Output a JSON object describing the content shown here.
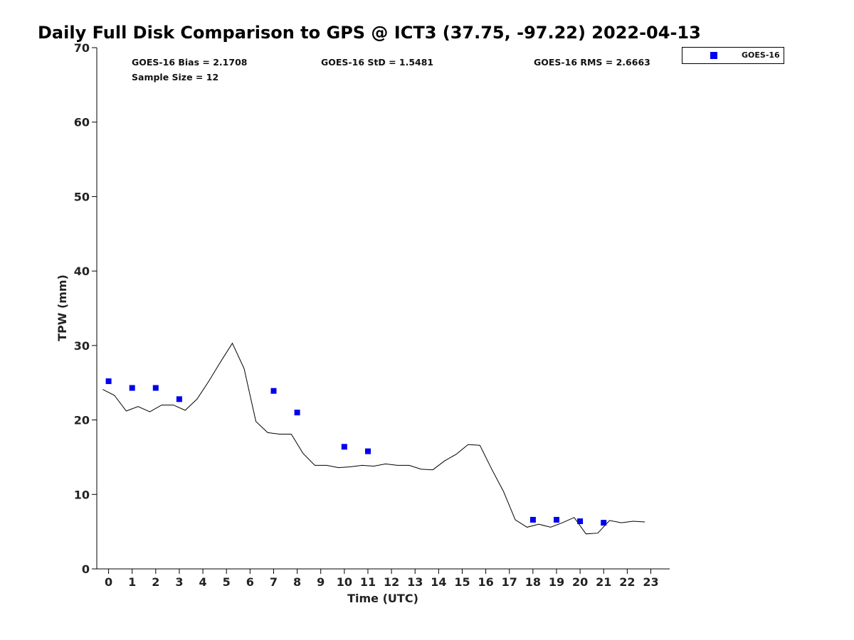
{
  "chart_data": {
    "type": "scatter",
    "title": "Daily Full Disk Comparison to GPS @ ICT3 (37.75, -97.22) 2022-04-13",
    "xlabel": "Time (UTC)",
    "ylabel": "TPW (mm)",
    "xlim": [
      -0.5,
      23.8
    ],
    "ylim": [
      0,
      70
    ],
    "x_ticks": [
      0,
      1,
      2,
      3,
      4,
      5,
      6,
      7,
      8,
      9,
      10,
      11,
      12,
      13,
      14,
      15,
      16,
      17,
      18,
      19,
      20,
      21,
      22,
      23
    ],
    "y_ticks": [
      0,
      10,
      20,
      30,
      40,
      50,
      60,
      70
    ],
    "grid": false,
    "legend_position": "top-right outside",
    "stats": {
      "bias": "GOES-16 Bias = 2.1708",
      "std": "GOES-16 StD = 1.5481",
      "rms": "GOES-16 RMS = 2.6663",
      "sample_size": "Sample Size = 12"
    },
    "series": [
      {
        "name": "GOES-16",
        "kind": "scatter",
        "marker": "square",
        "color": "#0000ee",
        "x": [
          0,
          1,
          2,
          3,
          7,
          8,
          10,
          11,
          18,
          19,
          20,
          21
        ],
        "y": [
          25.2,
          24.3,
          24.3,
          22.8,
          23.9,
          21.0,
          16.4,
          15.8,
          6.6,
          6.6,
          6.4,
          6.2
        ]
      },
      {
        "kind": "line",
        "color": "#000000",
        "x": [
          -0.25,
          0.25,
          0.75,
          1.25,
          1.75,
          2.25,
          2.75,
          3.25,
          3.75,
          4.25,
          4.75,
          5.25,
          5.75,
          6.25,
          6.75,
          7.25,
          7.75,
          8.25,
          8.75,
          9.25,
          9.75,
          10.25,
          10.75,
          11.25,
          11.75,
          12.25,
          12.75,
          13.25,
          13.75,
          14.25,
          14.75,
          15.25,
          15.75,
          16.25,
          16.75,
          17.25,
          17.75,
          18.25,
          18.75,
          19.25,
          19.75,
          20.25,
          20.75,
          21.25,
          21.75,
          22.25,
          22.75
        ],
        "y": [
          24.1,
          23.3,
          21.2,
          21.8,
          21.1,
          22.0,
          22.0,
          21.3,
          22.8,
          25.2,
          27.8,
          30.3,
          26.9,
          19.8,
          18.3,
          18.1,
          18.1,
          15.5,
          13.9,
          13.9,
          13.6,
          13.7,
          13.9,
          13.8,
          14.1,
          13.9,
          13.9,
          13.4,
          13.3,
          14.5,
          15.4,
          16.7,
          16.6,
          13.4,
          10.4,
          6.6,
          5.6,
          6.0,
          5.6,
          6.2,
          6.9,
          4.7,
          4.8,
          6.5,
          6.2,
          6.4,
          6.3
        ]
      }
    ]
  }
}
